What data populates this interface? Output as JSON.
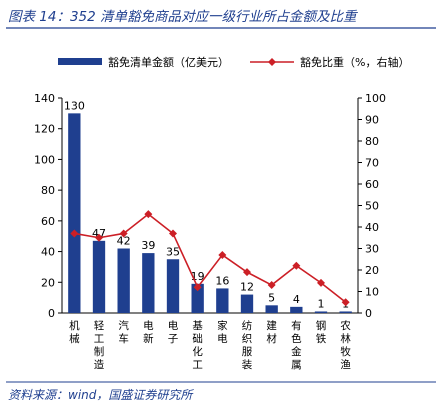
{
  "figure": {
    "title": "图表 14：352 清单豁免商品对应一级行业所占金额及比重",
    "source": "资料来源：wind，国盛证券研究所"
  },
  "colors": {
    "bar": "#1f3f8f",
    "line": "#cc1f26",
    "header_rule": "#1f3f8f"
  },
  "chart_data": {
    "type": "bar",
    "categories": [
      "机械",
      "轻工制造",
      "汽车",
      "电新",
      "电子",
      "基础化工",
      "家电",
      "纺织服装",
      "建材",
      "有色金属",
      "钢铁",
      "农林牧渔"
    ],
    "series": [
      {
        "name": "豁免清单金额（亿美元）",
        "type": "bar",
        "axis": "left",
        "values": [
          130,
          47,
          42,
          39,
          35,
          19,
          16,
          12,
          5,
          4,
          1,
          1
        ]
      },
      {
        "name": "豁免比重（%，右轴）",
        "type": "line",
        "axis": "right",
        "values": [
          37,
          35,
          37,
          46,
          37,
          12,
          27,
          19,
          13,
          22,
          14,
          5
        ]
      }
    ],
    "y_left": {
      "min": 0,
      "max": 140,
      "ticks": [
        0,
        20,
        40,
        60,
        80,
        100,
        120,
        140
      ]
    },
    "y_right": {
      "min": 0,
      "max": 100,
      "ticks": [
        0,
        10,
        20,
        30,
        40,
        50,
        60,
        70,
        80,
        90,
        100
      ]
    },
    "legend_position": "top",
    "grid": false
  }
}
